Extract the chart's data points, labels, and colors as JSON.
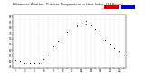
{
  "title": "Milwaukee Weather  Outdoor Temperature vs Heat Index  (24 Hours)",
  "hours": [
    0,
    1,
    2,
    3,
    4,
    5,
    6,
    7,
    8,
    9,
    10,
    11,
    12,
    13,
    14,
    15,
    16,
    17,
    18,
    19,
    20,
    21,
    22,
    23
  ],
  "temp": [
    51,
    50,
    49,
    49,
    49,
    49,
    52,
    57,
    63,
    68,
    72,
    76,
    79,
    81,
    83,
    84,
    82,
    79,
    74,
    69,
    65,
    62,
    59,
    57
  ],
  "heat_index": [
    51,
    50,
    49,
    49,
    49,
    49,
    52,
    57,
    63,
    68,
    72,
    76,
    79,
    82,
    85,
    86,
    83,
    79,
    74,
    69,
    65,
    62,
    59,
    57
  ],
  "temp_color": "#cc0000",
  "heat_color": "#0000cc",
  "bg_color": "#ffffff",
  "grid_color": "#bbbbbb",
  "ylim": [
    44,
    92
  ],
  "ytick_vals": [
    45,
    50,
    55,
    60,
    65,
    70,
    75,
    80,
    85,
    90
  ],
  "xtick_vals": [
    0,
    1,
    2,
    3,
    4,
    5,
    6,
    7,
    8,
    9,
    10,
    11,
    12,
    13,
    14,
    15,
    16,
    17,
    18,
    19,
    20,
    21,
    22,
    23
  ],
  "dot_size": 0.6,
  "title_fontsize": 2.5,
  "tick_fontsize": 2.0
}
